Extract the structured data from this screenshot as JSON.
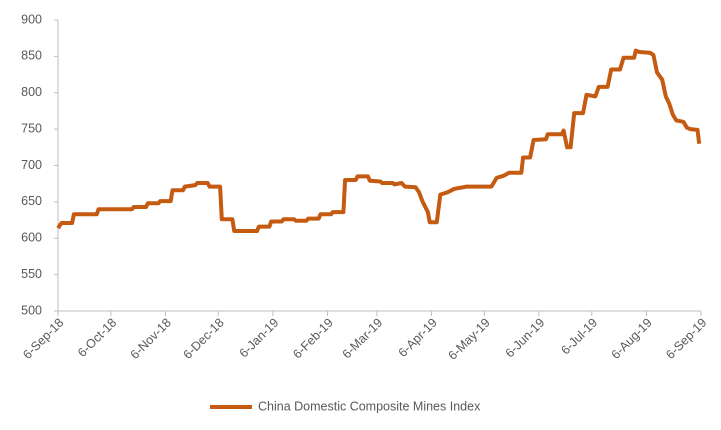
{
  "chart_data": {
    "type": "line",
    "x": [
      "2018-09-06",
      "2018-09-08",
      "2018-09-14",
      "2018-09-15",
      "2018-09-28",
      "2018-09-29",
      "2018-10-18",
      "2018-10-19",
      "2018-10-26",
      "2018-10-27",
      "2018-11-02",
      "2018-11-03",
      "2018-11-09",
      "2018-11-10",
      "2018-11-16",
      "2018-11-17",
      "2018-11-23",
      "2018-11-24",
      "2018-11-30",
      "2018-12-01",
      "2018-12-07",
      "2018-12-08",
      "2018-12-14",
      "2018-12-15",
      "2018-12-28",
      "2018-12-29",
      "2019-01-04",
      "2019-01-05",
      "2019-01-11",
      "2019-01-12",
      "2019-01-18",
      "2019-01-19",
      "2019-01-25",
      "2019-01-26",
      "2019-02-01",
      "2019-02-02",
      "2019-02-08",
      "2019-02-09",
      "2019-02-15",
      "2019-02-16",
      "2019-02-22",
      "2019-02-23",
      "2019-03-01",
      "2019-03-02",
      "2019-03-08",
      "2019-03-09",
      "2019-03-15",
      "2019-03-16",
      "2019-03-20",
      "2019-03-22",
      "2019-03-28",
      "2019-03-30",
      "2019-04-01",
      "2019-04-04",
      "2019-04-05",
      "2019-04-09",
      "2019-04-11",
      "2019-04-15",
      "2019-04-19",
      "2019-04-26",
      "2019-05-10",
      "2019-05-13",
      "2019-05-17",
      "2019-05-20",
      "2019-05-27",
      "2019-05-28",
      "2019-06-01",
      "2019-06-03",
      "2019-06-10",
      "2019-06-11",
      "2019-06-19",
      "2019-06-20",
      "2019-06-22",
      "2019-06-24",
      "2019-06-26",
      "2019-07-01",
      "2019-07-03",
      "2019-07-08",
      "2019-07-10",
      "2019-07-15",
      "2019-07-17",
      "2019-07-22",
      "2019-07-24",
      "2019-07-30",
      "2019-07-31",
      "2019-08-02",
      "2019-08-08",
      "2019-08-10",
      "2019-08-12",
      "2019-08-15",
      "2019-08-17",
      "2019-08-19",
      "2019-08-21",
      "2019-08-23",
      "2019-08-27",
      "2019-08-29",
      "2019-08-31",
      "2019-09-04",
      "2019-09-05"
    ],
    "series": [
      {
        "name": "China Domestic Composite Mines Index",
        "color": "#c55a11",
        "values": [
          614,
          621,
          621,
          633,
          633,
          640,
          640,
          643,
          643,
          648,
          648,
          651,
          651,
          666,
          666,
          671,
          673,
          676,
          676,
          671,
          671,
          626,
          626,
          610,
          610,
          616,
          616,
          623,
          623,
          626,
          626,
          624,
          624,
          627,
          627,
          633,
          633,
          636,
          636,
          680,
          680,
          685,
          685,
          679,
          678,
          676,
          676,
          674,
          676,
          671,
          670,
          663,
          650,
          636,
          622,
          622,
          660,
          663,
          668,
          671,
          671,
          683,
          686,
          690,
          690,
          711,
          711,
          735,
          736,
          743,
          743,
          748,
          725,
          725,
          772,
          772,
          797,
          795,
          808,
          808,
          832,
          832,
          848,
          848,
          858,
          856,
          855,
          852,
          828,
          818,
          795,
          785,
          770,
          762,
          760,
          752,
          750,
          749,
          730
        ]
      }
    ],
    "xlim": [
      "2018-09-06",
      "2019-09-06"
    ],
    "xticks": [
      {
        "value": "2018-09-06",
        "label": "6-Sep-18"
      },
      {
        "value": "2018-10-06",
        "label": "6-Oct-18"
      },
      {
        "value": "2018-11-06",
        "label": "6-Nov-18"
      },
      {
        "value": "2018-12-06",
        "label": "6-Dec-18"
      },
      {
        "value": "2019-01-06",
        "label": "6-Jan-19"
      },
      {
        "value": "2019-02-06",
        "label": "6-Feb-19"
      },
      {
        "value": "2019-03-06",
        "label": "6-Mar-19"
      },
      {
        "value": "2019-04-06",
        "label": "6-Apr-19"
      },
      {
        "value": "2019-05-06",
        "label": "6-May-19"
      },
      {
        "value": "2019-06-06",
        "label": "6-Jun-19"
      },
      {
        "value": "2019-07-06",
        "label": "6-Jul-19"
      },
      {
        "value": "2019-08-06",
        "label": "6-Aug-19"
      },
      {
        "value": "2019-09-06",
        "label": "6-Sep-19"
      }
    ],
    "ylim": [
      500,
      900
    ],
    "yticks": [
      500,
      550,
      600,
      650,
      700,
      750,
      800,
      850,
      900
    ],
    "grid": false,
    "legend": "bottom"
  }
}
